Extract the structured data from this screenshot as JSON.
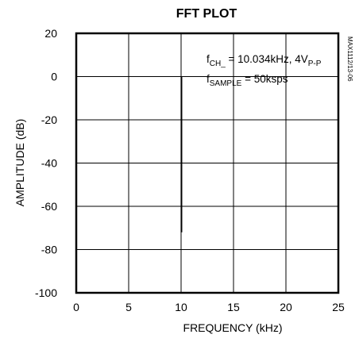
{
  "chart_data": {
    "type": "line",
    "title": "FFT PLOT",
    "xlabel": "FREQUENCY (kHz)",
    "ylabel": "AMPLITUDE (dB)",
    "xlim": [
      0,
      25
    ],
    "ylim": [
      -100,
      20
    ],
    "x_ticks": [
      0,
      5,
      10,
      15,
      20,
      25
    ],
    "y_ticks": [
      20,
      0,
      -20,
      -40,
      -60,
      -80,
      -100
    ],
    "x_tick_labels": [
      "0",
      "5",
      "10",
      "15",
      "20",
      "25"
    ],
    "y_tick_labels": [
      "20",
      "0",
      "-20",
      "-40",
      "-60",
      "-80",
      "-100"
    ],
    "grid": true,
    "series": [
      {
        "x": [
          10.034,
          10.034
        ],
        "y": [
          -72,
          0
        ]
      }
    ],
    "annotations": {
      "line1": {
        "f": "f",
        "sub1": "CH_",
        "mid": " = 10.034kHz, 4V",
        "sub2": "P-P"
      },
      "line2": {
        "f": "f",
        "sub1": "SAMPLE",
        "rest": " = 50ksps"
      }
    },
    "side_code": "MAX1112/13-06"
  }
}
